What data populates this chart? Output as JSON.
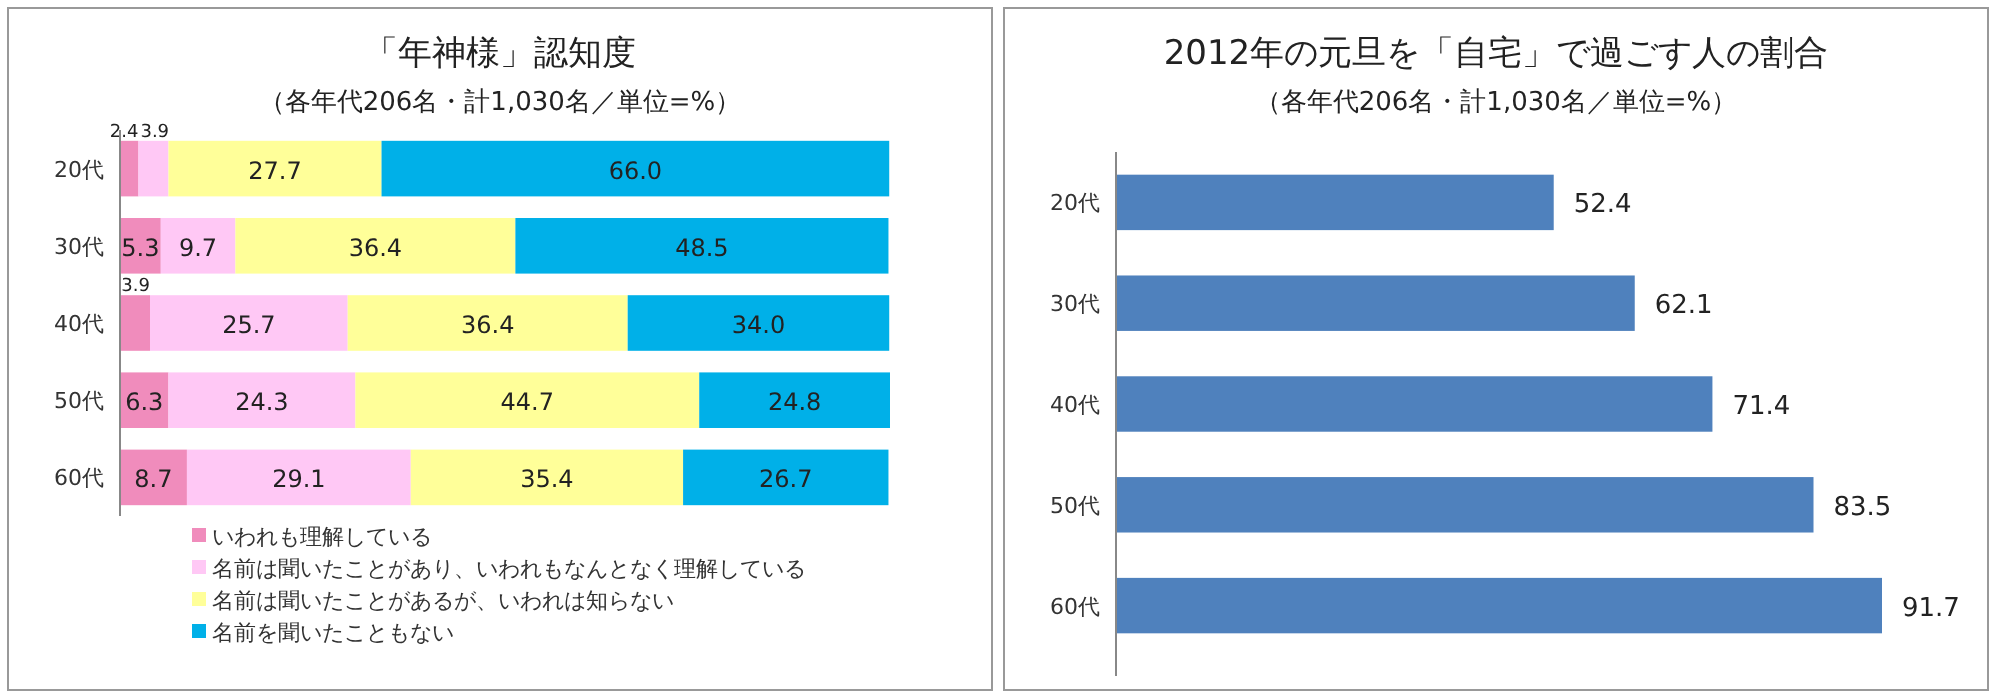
{
  "chart_data": [
    {
      "type": "bar",
      "orientation": "horizontal",
      "stacked": true,
      "title": "「年神様」認知度",
      "subtitle": "（各年代206名・計1,030名／単位=%）",
      "categories": [
        "20代",
        "30代",
        "40代",
        "50代",
        "60代"
      ],
      "series": [
        {
          "name": "いわれも理解している",
          "color": "#f08cbc",
          "values": [
            2.4,
            5.3,
            3.9,
            6.3,
            8.7
          ]
        },
        {
          "name": "名前は聞いたことがあり、いわれもなんとなく理解している",
          "color": "#ffc8f5",
          "values": [
            3.9,
            9.7,
            25.7,
            24.3,
            29.1
          ]
        },
        {
          "name": "名前は聞いたことがあるが、いわれは知らない",
          "color": "#ffff99",
          "values": [
            27.7,
            36.4,
            36.4,
            44.7,
            35.4
          ]
        },
        {
          "name": "名前を聞いたこともない",
          "color": "#00b0e8",
          "values": [
            66.0,
            48.5,
            34.0,
            24.8,
            26.7
          ],
          "value_labels": [
            "66.0",
            "48.5",
            "34.0",
            "24.8",
            "26.7"
          ]
        }
      ],
      "data_labels": true,
      "legend": "bottom"
    },
    {
      "type": "bar",
      "orientation": "horizontal",
      "title": "2012年の元旦を「自宅」で過ごす人の割合",
      "subtitle": "（各年代206名・計1,030名／単位=%）",
      "categories": [
        "20代",
        "30代",
        "40代",
        "50代",
        "60代"
      ],
      "values": [
        52.4,
        62.1,
        71.4,
        83.5,
        91.7
      ],
      "color": "#4f81bd",
      "data_labels": true
    }
  ]
}
